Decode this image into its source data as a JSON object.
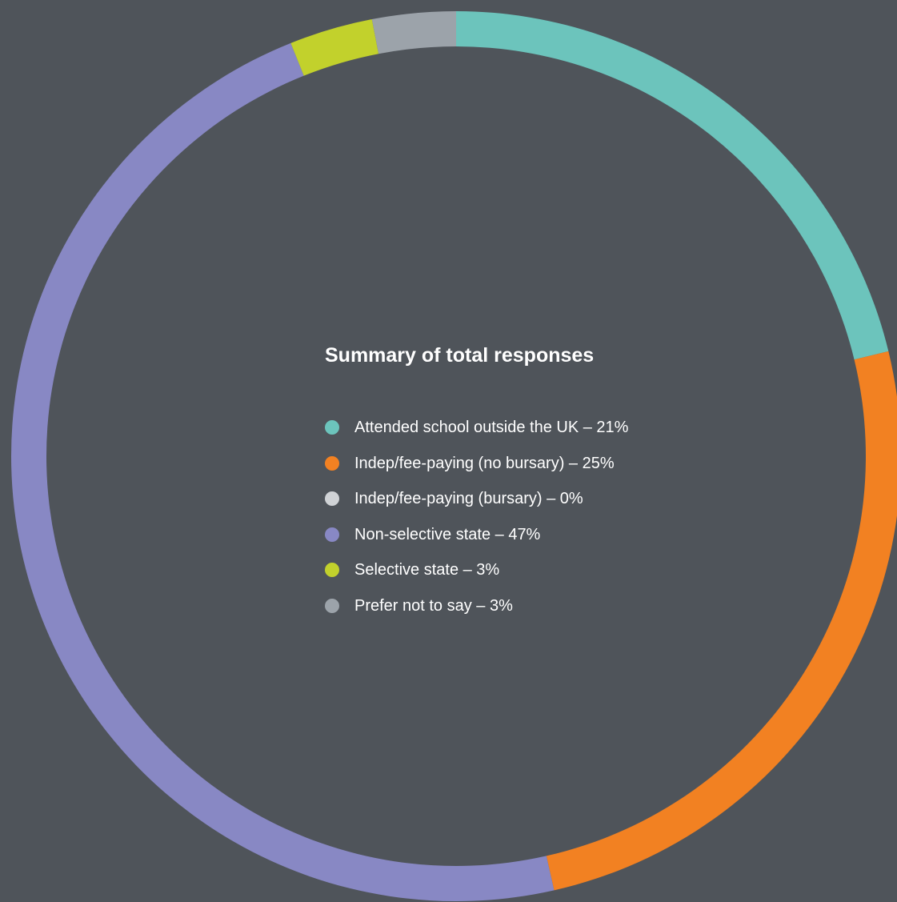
{
  "chart_data": {
    "type": "pie",
    "title": "Summary of total responses",
    "slices": [
      {
        "label": "Attended school outside the UK – 21%",
        "value": 21,
        "color": "#6cc4bc"
      },
      {
        "label": "Indep/fee-paying (no bursary) – 25%",
        "value": 25,
        "color": "#f28122"
      },
      {
        "label": "Indep/fee-paying (bursary) – 0%",
        "value": 0,
        "color": "#d0d3d6"
      },
      {
        "label": "Non-selective state – 47%",
        "value": 47,
        "color": "#8888c4"
      },
      {
        "label": "Selective state – 3%",
        "value": 3,
        "color": "#c2d12c"
      },
      {
        "label": "Prefer not to say – 3%",
        "value": 3,
        "color": "#9ca3aa"
      }
    ],
    "legend_position": "center",
    "style": "donut"
  },
  "colors": {
    "background": "#4f545a",
    "text": "#ffffff"
  }
}
